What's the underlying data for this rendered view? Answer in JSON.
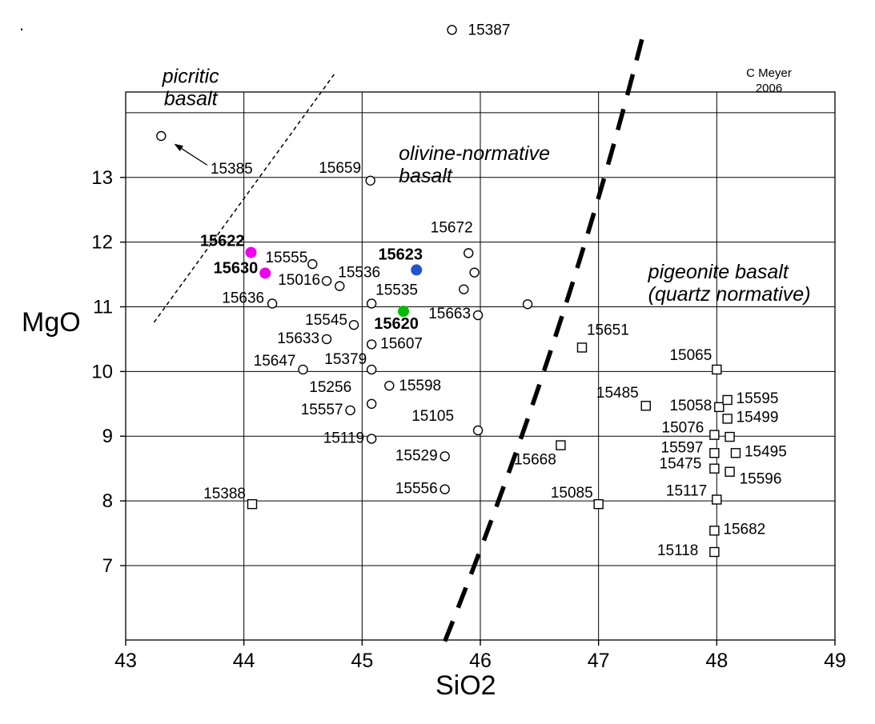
{
  "stray_mark": ".",
  "credit": {
    "line1": "C Meyer",
    "line2": "2006"
  },
  "axes": {
    "x": {
      "label": "SiO2",
      "ticks": [
        43,
        44,
        45,
        46,
        47,
        48,
        49
      ]
    },
    "y": {
      "label": "MgO",
      "ticks": [
        7,
        8,
        9,
        10,
        11,
        12,
        13
      ],
      "gridlines": [
        7,
        8,
        9,
        10,
        11,
        12,
        13,
        14
      ]
    }
  },
  "chart_data": {
    "type": "scatter",
    "title": "",
    "xlabel": "SiO2",
    "ylabel": "MgO",
    "xlim": [
      43,
      49
    ],
    "ylim": [
      5.85,
      14.32
    ],
    "grid": true,
    "regions": [
      {
        "name": "picritic-basalt",
        "lines": [
          "picritic",
          "basalt"
        ],
        "x": 43.55,
        "y": 14.46,
        "anchor": "middle"
      },
      {
        "name": "olivine-normative-basalt",
        "lines": [
          "olivine-normative",
          "basalt"
        ],
        "x": 45.31,
        "y": 13.27,
        "anchor": "start"
      },
      {
        "name": "pigeonite-basalt-quartz-normative",
        "lines": [
          "pigeonite basalt",
          "(quartz normative)"
        ],
        "x": 47.42,
        "y": 11.44,
        "anchor": "start"
      }
    ],
    "series": [
      {
        "name": "olivine-normative and picritic basalts",
        "marker": "circle",
        "points": [
          {
            "id": "15387",
            "x": 45.76,
            "y": 15.28,
            "dx": 20,
            "dy": 6,
            "anchor": "start"
          },
          {
            "id": "15385",
            "x": 43.3,
            "y": 13.64,
            "dx": 88,
            "dy": 47,
            "anchor": "middle"
          },
          {
            "id": "15659",
            "x": 45.07,
            "y": 12.95,
            "dx": -38,
            "dy": -10,
            "anchor": "middle"
          },
          {
            "id": "15672",
            "x": 45.9,
            "y": 11.83,
            "dx": -21,
            "dy": -26,
            "anchor": "middle"
          },
          {
            "id": "",
            "x": 45.95,
            "y": 11.53
          },
          {
            "id": "",
            "x": 45.86,
            "y": 11.27
          },
          {
            "id": "15555",
            "x": 44.58,
            "y": 11.66,
            "dx": -6,
            "dy": -2,
            "anchor": "end"
          },
          {
            "id": "15016",
            "x": 44.7,
            "y": 11.4,
            "dx": -8,
            "dy": 5,
            "anchor": "end"
          },
          {
            "id": "15536",
            "x": 44.81,
            "y": 11.32,
            "dx": -2,
            "dy": -11,
            "anchor": "start"
          },
          {
            "id": "15535",
            "x": 45.08,
            "y": 11.05,
            "dx": 5,
            "dy": -11,
            "anchor": "start"
          },
          {
            "id": "15636",
            "x": 44.24,
            "y": 11.05,
            "dx": -10,
            "dy": -1,
            "anchor": "end"
          },
          {
            "id": "",
            "x": 46.4,
            "y": 11.04
          },
          {
            "id": "15663",
            "x": 45.98,
            "y": 10.87,
            "dx": -9,
            "dy": 4,
            "anchor": "end"
          },
          {
            "id": "15545",
            "x": 44.93,
            "y": 10.72,
            "dx": -8,
            "dy": 0,
            "anchor": "end"
          },
          {
            "id": "15633",
            "x": 44.7,
            "y": 10.5,
            "dx": -9,
            "dy": 5,
            "anchor": "end"
          },
          {
            "id": "15607",
            "x": 45.08,
            "y": 10.42,
            "dx": 11,
            "dy": 5,
            "anchor": "start"
          },
          {
            "id": "15647",
            "x": 44.5,
            "y": 10.03,
            "dx": -9,
            "dy": -5,
            "anchor": "end"
          },
          {
            "id": "15379",
            "x": 45.08,
            "y": 10.03,
            "dx": -6,
            "dy": -7,
            "anchor": "end"
          },
          {
            "id": "15598",
            "x": 45.23,
            "y": 9.78,
            "dx": 12,
            "dy": 6,
            "anchor": "start"
          },
          {
            "id": "15256",
            "x": 45.08,
            "y": 9.5,
            "dx": -25,
            "dy": -15,
            "anchor": "end"
          },
          {
            "id": "15557",
            "x": 44.9,
            "y": 9.4,
            "dx": -9,
            "dy": 5,
            "anchor": "end"
          },
          {
            "id": "15105",
            "x": 45.98,
            "y": 9.09,
            "dx": -30,
            "dy": -12,
            "anchor": "end"
          },
          {
            "id": "15119",
            "x": 45.08,
            "y": 8.96,
            "dx": -9,
            "dy": 5,
            "anchor": "end"
          },
          {
            "id": "15529",
            "x": 45.7,
            "y": 8.69,
            "dx": -9,
            "dy": 5,
            "anchor": "end"
          },
          {
            "id": "15556",
            "x": 45.7,
            "y": 8.18,
            "dx": -9,
            "dy": 5,
            "anchor": "end"
          }
        ]
      },
      {
        "name": "quartz-normative pigeonite basalts",
        "marker": "square",
        "points": [
          {
            "id": "15388",
            "x": 44.07,
            "y": 7.95,
            "dx": -8,
            "dy": -7,
            "anchor": "end"
          },
          {
            "id": "15651",
            "x": 46.86,
            "y": 10.37,
            "dx": 6,
            "dy": -16,
            "anchor": "start"
          },
          {
            "id": "15065",
            "x": 48.0,
            "y": 10.03,
            "dx": -6,
            "dy": -12,
            "anchor": "end"
          },
          {
            "id": "15485",
            "x": 47.4,
            "y": 9.47,
            "dx": -9,
            "dy": -10,
            "anchor": "end"
          },
          {
            "id": "15058",
            "x": 48.02,
            "y": 9.45,
            "dx": -9,
            "dy": 4,
            "anchor": "end"
          },
          {
            "id": "15595",
            "x": 48.09,
            "y": 9.56,
            "dx": 11,
            "dy": 4,
            "anchor": "start"
          },
          {
            "id": "15499",
            "x": 48.09,
            "y": 9.27,
            "dx": 11,
            "dy": 4,
            "anchor": "start"
          },
          {
            "id": "15076",
            "x": 47.98,
            "y": 9.02,
            "dx": -13,
            "dy": -3,
            "anchor": "end"
          },
          {
            "id": "",
            "x": 48.11,
            "y": 8.99
          },
          {
            "id": "15597",
            "x": 47.98,
            "y": 8.74,
            "dx": -14,
            "dy": -1,
            "anchor": "end"
          },
          {
            "id": "15495",
            "x": 48.16,
            "y": 8.74,
            "dx": 11,
            "dy": 4,
            "anchor": "start"
          },
          {
            "id": "15475",
            "x": 47.98,
            "y": 8.5,
            "dx": -16,
            "dy": 0,
            "anchor": "end"
          },
          {
            "id": "15596",
            "x": 48.11,
            "y": 8.45,
            "dx": 12,
            "dy": 15,
            "anchor": "start"
          },
          {
            "id": "15117",
            "x": 48.0,
            "y": 8.02,
            "dx": -12,
            "dy": -5,
            "anchor": "end"
          },
          {
            "id": "15668",
            "x": 46.68,
            "y": 8.86,
            "dx": -32,
            "dy": 24,
            "anchor": "middle"
          },
          {
            "id": "15085",
            "x": 47.0,
            "y": 7.95,
            "dx": -7,
            "dy": -8,
            "anchor": "end"
          },
          {
            "id": "15682",
            "x": 47.98,
            "y": 7.54,
            "dx": 11,
            "dy": 4,
            "anchor": "start"
          },
          {
            "id": "15118",
            "x": 47.98,
            "y": 7.21,
            "dx": -20,
            "dy": 4,
            "anchor": "end"
          }
        ]
      },
      {
        "name": "highlighted samples",
        "marker": "dot",
        "points": [
          {
            "id": "15622",
            "x": 44.06,
            "y": 11.84,
            "color": "#ee00ee",
            "dx": -8,
            "dy": -8,
            "anchor": "end",
            "bold": true
          },
          {
            "id": "15630",
            "x": 44.18,
            "y": 11.52,
            "color": "#ee00ee",
            "dx": -9,
            "dy": 0,
            "anchor": "end",
            "bold": true
          },
          {
            "id": "15623",
            "x": 45.46,
            "y": 11.57,
            "color": "#2255cc",
            "dx": -20,
            "dy": -13,
            "anchor": "middle",
            "bold": true
          },
          {
            "id": "15620",
            "x": 45.35,
            "y": 10.93,
            "color": "#00bb00",
            "dx": -9,
            "dy": 22,
            "anchor": "middle",
            "bold": true
          }
        ]
      }
    ],
    "boundaries": [
      {
        "name": "picritic-boundary",
        "width": 1.5,
        "dash": "5,4",
        "curve": [
          [
            43.24,
            10.76
          ],
          [
            44.77,
            14.61
          ]
        ]
      },
      {
        "name": "olivine-quartz-normative-boundary",
        "width": 5.5,
        "dash": "27,18",
        "curve": [
          [
            45.7,
            5.83
          ],
          [
            46.74,
            10.6
          ],
          [
            47.39,
            15.3
          ]
        ]
      }
    ],
    "arrow": {
      "from": [
        43.69,
        13.19
      ],
      "to": [
        43.41,
        13.52
      ]
    }
  }
}
